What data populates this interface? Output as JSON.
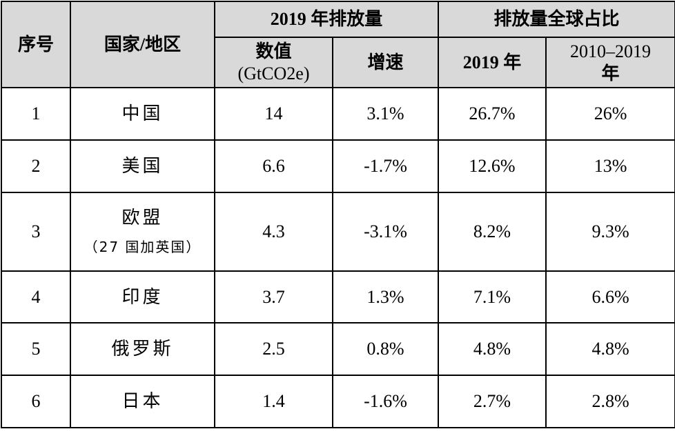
{
  "table": {
    "headers": {
      "index": "序号",
      "region": "国家/地区",
      "emissions_2019": "2019 年排放量",
      "share": "排放量全球占比",
      "value_line1": "数值",
      "value_line2": "(GtCO2e)",
      "growth": "增速",
      "share_2019": "2019 年",
      "share_decade_line1": "2010–2019",
      "share_decade_line2": "年"
    },
    "rows": [
      {
        "index": "1",
        "region": "中国",
        "region_note": "",
        "value": "14",
        "growth": "3.1%",
        "share_2019": "26.7%",
        "share_decade": "26%"
      },
      {
        "index": "2",
        "region": "美国",
        "region_note": "",
        "value": "6.6",
        "growth": "-1.7%",
        "share_2019": "12.6%",
        "share_decade": "13%"
      },
      {
        "index": "3",
        "region": "欧盟",
        "region_note": "（27 国加英国）",
        "value": "4.3",
        "growth": "-3.1%",
        "share_2019": "8.2%",
        "share_decade": "9.3%"
      },
      {
        "index": "4",
        "region": "印度",
        "region_note": "",
        "value": "3.7",
        "growth": "1.3%",
        "share_2019": "7.1%",
        "share_decade": "6.6%"
      },
      {
        "index": "5",
        "region": "俄罗斯",
        "region_note": "",
        "value": "2.5",
        "growth": "0.8%",
        "share_2019": "4.8%",
        "share_decade": "4.8%"
      },
      {
        "index": "6",
        "region": "日本",
        "region_note": "",
        "value": "1.4",
        "growth": "-1.6%",
        "share_2019": "2.7%",
        "share_decade": "2.8%"
      }
    ]
  }
}
